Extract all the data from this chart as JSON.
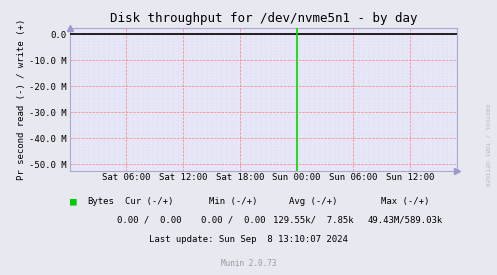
{
  "title": "Disk throughput for /dev/nvme5n1 - by day",
  "ylabel": "Pr second read (-) / write (+)",
  "bg_color": "#e8e8f8",
  "fig_bg_color": "#e8e8f0",
  "grid_color_red": "#ff8080",
  "grid_color_blue": "#c0c8e8",
  "border_color": "#aaaacc",
  "ylim": [
    -52500000,
    2500000
  ],
  "yticks": [
    0.0,
    -10000000,
    -20000000,
    -30000000,
    -40000000,
    -50000000
  ],
  "ytick_labels": [
    "0.0",
    "-10.0 M",
    "-20.0 M",
    "-30.0 M",
    "-40.0 M",
    "-50.0 M"
  ],
  "xtick_labels": [
    "Sat 06:00",
    "Sat 12:00",
    "Sat 18:00",
    "Sun 00:00",
    "Sun 06:00",
    "Sun 12:00"
  ],
  "xtick_positions": [
    6,
    12,
    18,
    24,
    30,
    36
  ],
  "xlim": [
    0,
    41
  ],
  "title_fontsize": 9,
  "tick_fontsize": 6.5,
  "ylabel_fontsize": 6.5,
  "line_color": "#00dd00",
  "line_zero_color": "#000000",
  "spike_x": 24,
  "legend_label": "Bytes",
  "legend_color": "#00cc00",
  "cur_label": "Cur (-/+)",
  "min_label": "Min (-/+)",
  "avg_label": "Avg (-/+)",
  "max_label": "Max (-/+)",
  "cur_val": "0.00 /  0.00",
  "min_val": "0.00 /  0.00",
  "avg_val": "129.55k/  7.85k",
  "max_val": "49.43M/589.03k",
  "last_update": "Last update: Sun Sep  8 13:10:07 2024",
  "munin_version": "Munin 2.0.73",
  "rrdtool_text": "RRDTOOL / TOBI OETIKER",
  "watermark_color": "#bbbbbb",
  "arrow_color": "#9999cc"
}
